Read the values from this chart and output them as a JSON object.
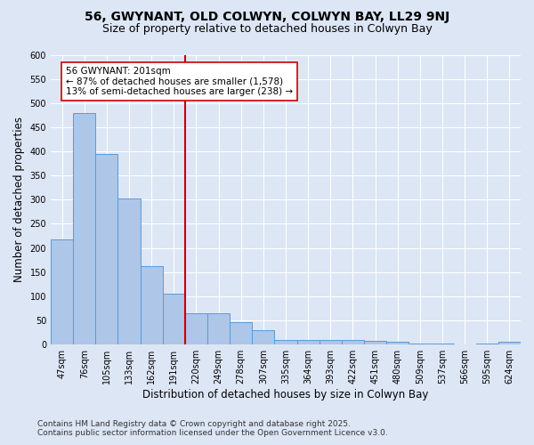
{
  "title1": "56, GWYNANT, OLD COLWYN, COLWYN BAY, LL29 9NJ",
  "title2": "Size of property relative to detached houses in Colwyn Bay",
  "xlabel": "Distribution of detached houses by size in Colwyn Bay",
  "ylabel": "Number of detached properties",
  "categories": [
    "47sqm",
    "76sqm",
    "105sqm",
    "133sqm",
    "162sqm",
    "191sqm",
    "220sqm",
    "249sqm",
    "278sqm",
    "307sqm",
    "335sqm",
    "364sqm",
    "393sqm",
    "422sqm",
    "451sqm",
    "480sqm",
    "509sqm",
    "537sqm",
    "566sqm",
    "595sqm",
    "624sqm"
  ],
  "values": [
    218,
    480,
    395,
    302,
    163,
    105,
    65,
    65,
    47,
    30,
    10,
    10,
    10,
    10,
    7,
    5,
    3,
    3,
    1,
    3,
    5
  ],
  "bar_color": "#aec6e8",
  "bar_edge_color": "#5b9bd5",
  "background_color": "#dce6f5",
  "grid_color": "#ffffff",
  "vline_x_index": 5,
  "vline_color": "#cc0000",
  "annotation_text": "56 GWYNANT: 201sqm\n← 87% of detached houses are smaller (1,578)\n13% of semi-detached houses are larger (238) →",
  "annotation_box_color": "#ffffff",
  "annotation_box_edge_color": "#cc0000",
  "ylim": [
    0,
    600
  ],
  "yticks": [
    0,
    50,
    100,
    150,
    200,
    250,
    300,
    350,
    400,
    450,
    500,
    550,
    600
  ],
  "footer1": "Contains HM Land Registry data © Crown copyright and database right 2025.",
  "footer2": "Contains public sector information licensed under the Open Government Licence v3.0.",
  "title1_fontsize": 10,
  "title2_fontsize": 9,
  "tick_fontsize": 7,
  "label_fontsize": 8.5,
  "footer_fontsize": 6.5,
  "annotation_fontsize": 7.5
}
